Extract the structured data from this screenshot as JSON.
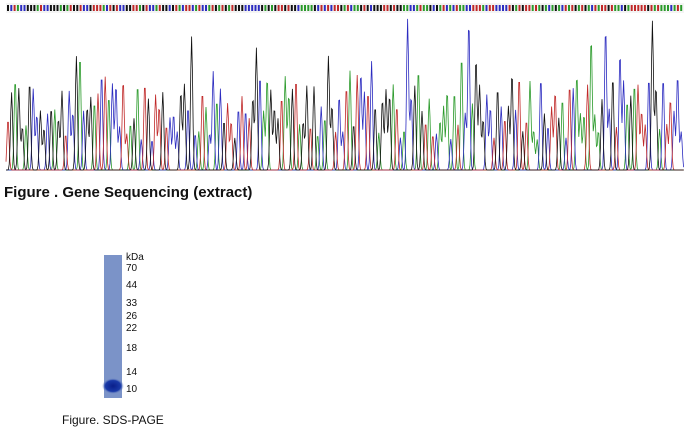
{
  "figure_1": {
    "caption": "Figure . Gene Sequencing (extract)"
  },
  "figure_2": {
    "caption": "Figure. SDS-PAGE",
    "unit": "kDa",
    "markers": [
      "70",
      "44",
      "33",
      "26",
      "22",
      "18",
      "14",
      "10"
    ]
  }
}
